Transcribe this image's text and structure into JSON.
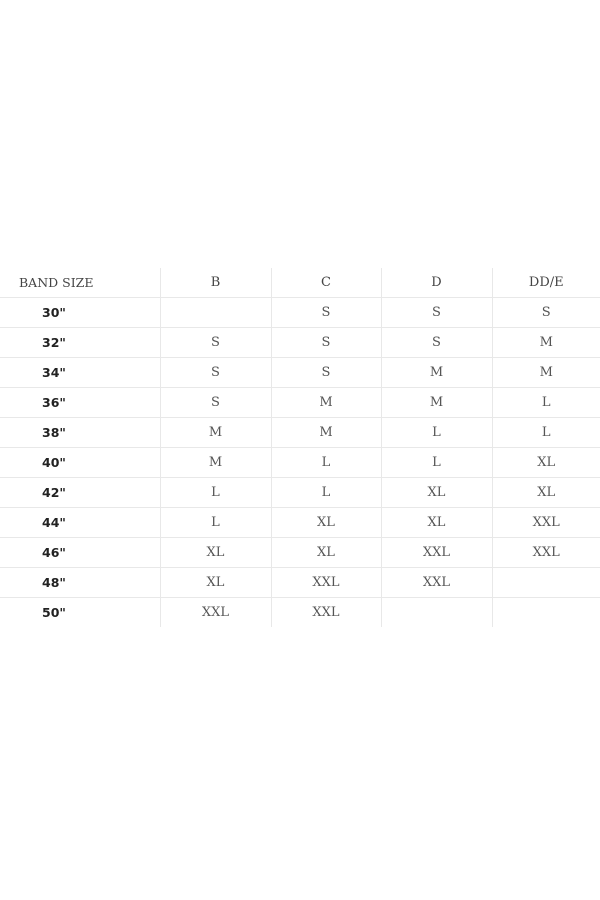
{
  "table": {
    "headers": [
      "BAND SIZE",
      "B",
      "C",
      "D",
      "DD/E"
    ],
    "rows": [
      {
        "band": "30\"",
        "cells": [
          "",
          "S",
          "S",
          "S"
        ]
      },
      {
        "band": "32\"",
        "cells": [
          "S",
          "S",
          "S",
          "M"
        ]
      },
      {
        "band": "34\"",
        "cells": [
          "S",
          "S",
          "M",
          "M"
        ]
      },
      {
        "band": "36\"",
        "cells": [
          "S",
          "M",
          "M",
          "L"
        ]
      },
      {
        "band": "38\"",
        "cells": [
          "M",
          "M",
          "L",
          "L"
        ]
      },
      {
        "band": "40\"",
        "cells": [
          "M",
          "L",
          "L",
          "XL"
        ]
      },
      {
        "band": "42\"",
        "cells": [
          "L",
          "L",
          "XL",
          "XL"
        ]
      },
      {
        "band": "44\"",
        "cells": [
          "L",
          "XL",
          "XL",
          "XXL"
        ]
      },
      {
        "band": "46\"",
        "cells": [
          "XL",
          "XL",
          "XXL",
          "XXL"
        ]
      },
      {
        "band": "48\"",
        "cells": [
          "XL",
          "XXL",
          "XXL",
          ""
        ]
      },
      {
        "band": "50\"",
        "cells": [
          "XXL",
          "XXL",
          "",
          ""
        ]
      }
    ]
  }
}
